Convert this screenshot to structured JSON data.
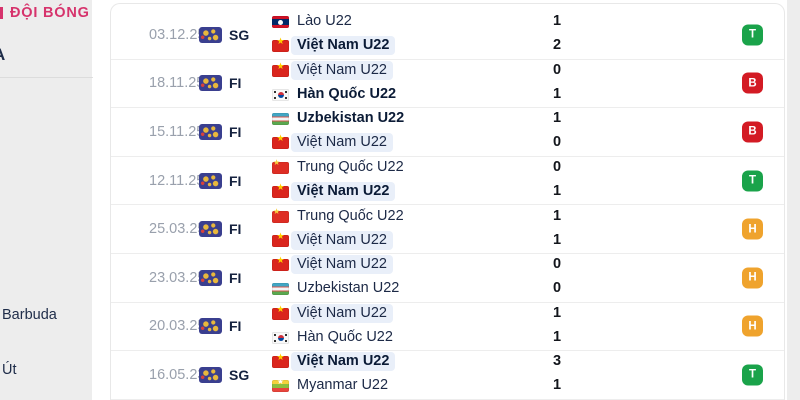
{
  "sidebar": {
    "header": "ĐỘI BÓNG",
    "section_letter": "A",
    "items": [
      {
        "label": "Barbuda"
      },
      {
        "label": "Út"
      }
    ]
  },
  "result_colors": {
    "T": "#1aa34a",
    "B": "#d31b24",
    "H": "#efa32d"
  },
  "highlight_pill_color": "#e9eff9",
  "matches": [
    {
      "date": "03.12.25",
      "comp": "SG",
      "home": {
        "name": "Lào U22",
        "flag": "la",
        "bold": false,
        "hl": false
      },
      "away": {
        "name": "Việt Nam U22",
        "flag": "vn",
        "bold": true,
        "hl": true
      },
      "scores": [
        "1",
        "2"
      ],
      "result": "T"
    },
    {
      "date": "18.11.25",
      "comp": "FI",
      "home": {
        "name": "Việt Nam U22",
        "flag": "vn",
        "bold": false,
        "hl": true
      },
      "away": {
        "name": "Hàn Quốc U22",
        "flag": "kr",
        "bold": true,
        "hl": false
      },
      "scores": [
        "0",
        "1"
      ],
      "result": "B"
    },
    {
      "date": "15.11.25",
      "comp": "FI",
      "home": {
        "name": "Uzbekistan U22",
        "flag": "uz",
        "bold": true,
        "hl": false
      },
      "away": {
        "name": "Việt Nam U22",
        "flag": "vn",
        "bold": false,
        "hl": true
      },
      "scores": [
        "1",
        "0"
      ],
      "result": "B"
    },
    {
      "date": "12.11.25",
      "comp": "FI",
      "home": {
        "name": "Trung Quốc U22",
        "flag": "cn",
        "bold": false,
        "hl": false
      },
      "away": {
        "name": "Việt Nam U22",
        "flag": "vn",
        "bold": true,
        "hl": true
      },
      "scores": [
        "0",
        "1"
      ],
      "result": "T"
    },
    {
      "date": "25.03.25",
      "comp": "FI",
      "home": {
        "name": "Trung Quốc U22",
        "flag": "cn",
        "bold": false,
        "hl": false
      },
      "away": {
        "name": "Việt Nam U22",
        "flag": "vn",
        "bold": false,
        "hl": true
      },
      "scores": [
        "1",
        "1"
      ],
      "result": "H"
    },
    {
      "date": "23.03.25",
      "comp": "FI",
      "home": {
        "name": "Việt Nam U22",
        "flag": "vn",
        "bold": false,
        "hl": true
      },
      "away": {
        "name": "Uzbekistan U22",
        "flag": "uz",
        "bold": false,
        "hl": false
      },
      "scores": [
        "0",
        "0"
      ],
      "result": "H"
    },
    {
      "date": "20.03.25",
      "comp": "FI",
      "home": {
        "name": "Việt Nam U22",
        "flag": "vn",
        "bold": false,
        "hl": true
      },
      "away": {
        "name": "Hàn Quốc U22",
        "flag": "kr",
        "bold": false,
        "hl": false
      },
      "scores": [
        "1",
        "1"
      ],
      "result": "H"
    },
    {
      "date": "16.05.23",
      "comp": "SG",
      "home": {
        "name": "Việt Nam U22",
        "flag": "vn",
        "bold": true,
        "hl": true
      },
      "away": {
        "name": "Myanmar U22",
        "flag": "mm",
        "bold": false,
        "hl": false
      },
      "scores": [
        "3",
        "1"
      ],
      "result": "T"
    }
  ]
}
